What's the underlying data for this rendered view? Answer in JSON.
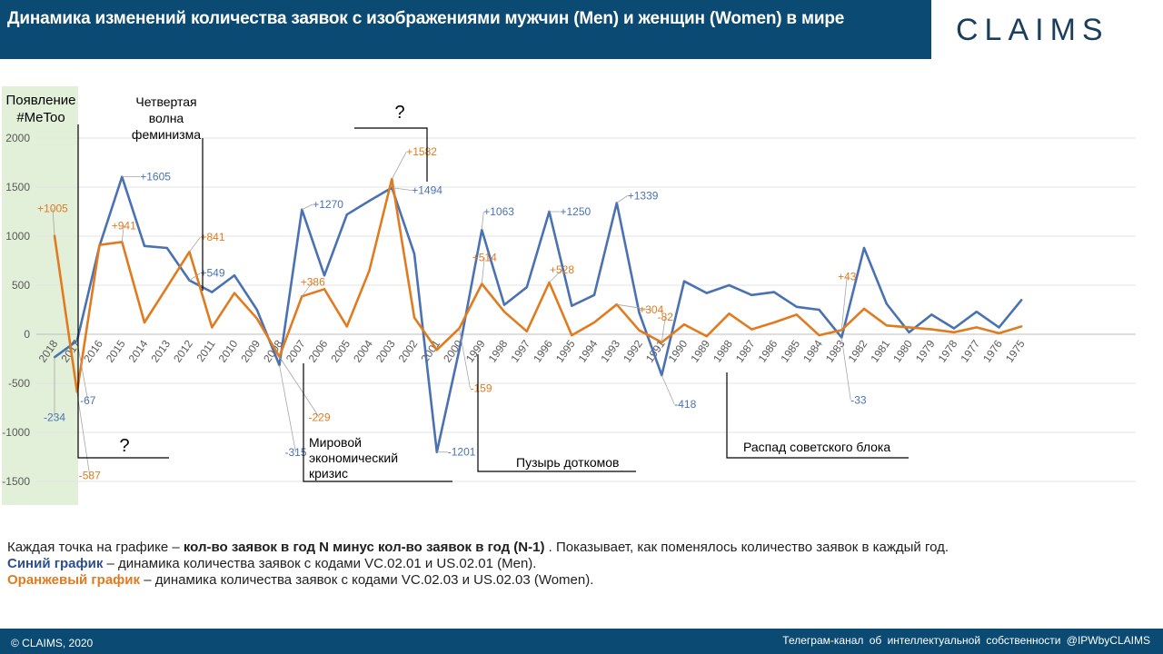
{
  "header": {
    "title": "Динамика изменений количества заявок с изображениями мужчин (Men) и женщин (Women) в мире",
    "logo": "CLAIMS"
  },
  "chart_data": {
    "type": "line",
    "categories": [
      "2018",
      "2017",
      "2016",
      "2015",
      "2014",
      "2013",
      "2012",
      "2011",
      "2010",
      "2009",
      "2008",
      "2007",
      "2006",
      "2005",
      "2004",
      "2003",
      "2002",
      "2001",
      "2000",
      "1999",
      "1998",
      "1997",
      "1996",
      "1995",
      "1994",
      "1993",
      "1992",
      "1991",
      "1990",
      "1989",
      "1988",
      "1987",
      "1986",
      "1985",
      "1984",
      "1983",
      "1982",
      "1981",
      "1980",
      "1979",
      "1978",
      "1977",
      "1976",
      "1975"
    ],
    "series": [
      {
        "name": "Men",
        "color": "#4a72b2",
        "values": [
          -234,
          -67,
          900,
          1605,
          900,
          880,
          549,
          430,
          600,
          250,
          -315,
          1270,
          600,
          1220,
          1360,
          1494,
          820,
          -1201,
          -159,
          1063,
          300,
          480,
          1250,
          290,
          400,
          1339,
          220,
          -418,
          540,
          420,
          500,
          400,
          430,
          280,
          250,
          -33,
          880,
          310,
          20,
          200,
          60,
          230,
          70,
          350
        ]
      },
      {
        "name": "Women",
        "color": "#e07b1f",
        "values": [
          1005,
          -587,
          910,
          941,
          120,
          480,
          841,
          70,
          420,
          160,
          -229,
          386,
          460,
          80,
          650,
          1582,
          170,
          -159,
          60,
          514,
          230,
          30,
          528,
          -10,
          120,
          304,
          40,
          -82,
          100,
          -20,
          210,
          50,
          120,
          200,
          -10,
          43,
          260,
          90,
          70,
          50,
          20,
          70,
          10,
          80
        ]
      }
    ],
    "ylim": [
      -1500,
      2000
    ],
    "yticks": [
      "2000",
      "1500",
      "1000",
      "500",
      "0",
      "-500",
      "-1000",
      "-1500"
    ],
    "annotations": [
      {
        "series": 1,
        "index": 0,
        "label": "+1005"
      },
      {
        "series": 0,
        "index": 0,
        "label": "-234"
      },
      {
        "series": 0,
        "index": 1,
        "label": "-67"
      },
      {
        "series": 1,
        "index": 1,
        "label": "-587"
      },
      {
        "series": 0,
        "index": 3,
        "label": "+1605"
      },
      {
        "series": 1,
        "index": 3,
        "label": "+941"
      },
      {
        "series": 1,
        "index": 6,
        "label": "+841"
      },
      {
        "series": 0,
        "index": 6,
        "label": "+549"
      },
      {
        "series": 0,
        "index": 10,
        "label": "-315"
      },
      {
        "series": 1,
        "index": 10,
        "label": "-229"
      },
      {
        "series": 0,
        "index": 11,
        "label": "+1270"
      },
      {
        "series": 1,
        "index": 11,
        "label": "+386"
      },
      {
        "series": 1,
        "index": 15,
        "label": "+1582"
      },
      {
        "series": 0,
        "index": 15,
        "label": "+1494"
      },
      {
        "series": 0,
        "index": 17,
        "label": "-1201"
      },
      {
        "series": 1,
        "index": 18,
        "label": "-159"
      },
      {
        "series": 0,
        "index": 19,
        "label": "+1063"
      },
      {
        "series": 1,
        "index": 19,
        "label": "+514"
      },
      {
        "series": 0,
        "index": 22,
        "label": "+1250"
      },
      {
        "series": 1,
        "index": 22,
        "label": "+528"
      },
      {
        "series": 0,
        "index": 25,
        "label": "+1339"
      },
      {
        "series": 1,
        "index": 25,
        "label": "+304"
      },
      {
        "series": 1,
        "index": 27,
        "label": "-82"
      },
      {
        "series": 0,
        "index": 27,
        "label": "-418"
      },
      {
        "series": 1,
        "index": 35,
        "label": "+43"
      },
      {
        "series": 0,
        "index": 35,
        "label": "-33"
      }
    ],
    "events": [
      {
        "text": "Появление\n#MeToo"
      },
      {
        "text": "Четвертая\nволна\nфеминизма"
      },
      {
        "text": "?"
      },
      {
        "text": "?"
      },
      {
        "text": "Мировой\nэкономический\nкризис"
      },
      {
        "text": "Пузырь доткомов"
      },
      {
        "text": "Распад советского блока"
      }
    ]
  },
  "notes": {
    "line1_pre": "Каждая точка на графике – ",
    "line1_bold": "кол-во заявок в год N минус кол-во заявок в год (N-1)",
    "line1_post": " . Показывает, как поменялось количество заявок в каждый год.",
    "blue_label": "Синий график",
    "blue_text": " – динамика количества заявок с кодами VC.02.01 и US.02.01 (Men).",
    "orange_label": "Оранжевый график",
    "orange_text": " – динамика количества заявок с кодами VC.02.03 и US.02.03 (Women)."
  },
  "footer": {
    "left": "© CLAIMS, 2020",
    "right": "Телеграм-канал  об интеллектуальной  собственности @IPWbyCLAIMS"
  }
}
